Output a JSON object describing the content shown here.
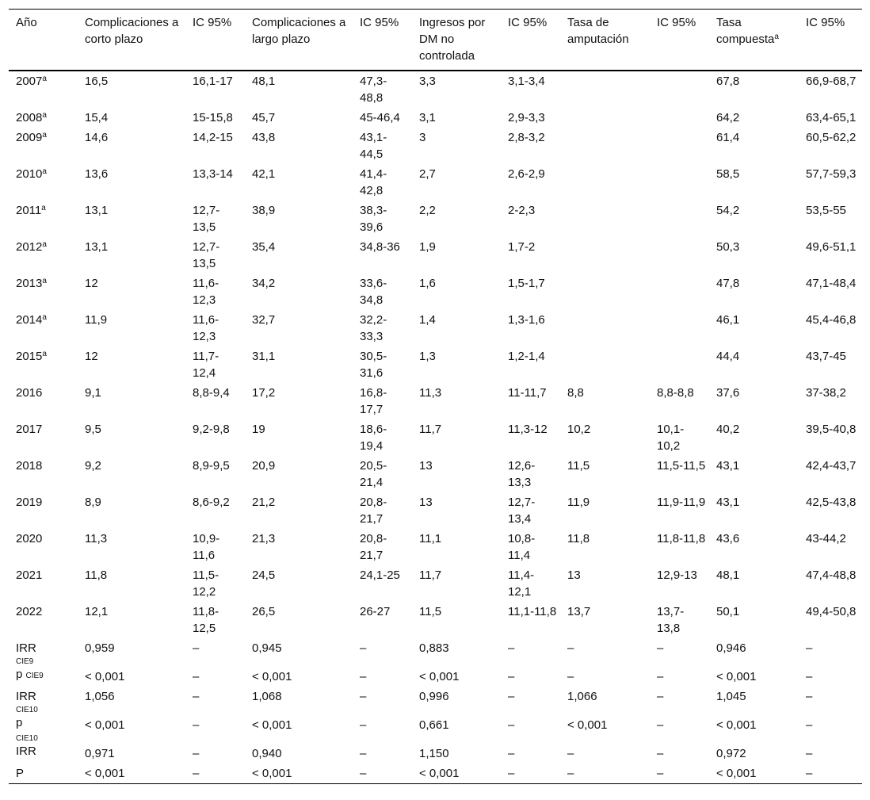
{
  "table": {
    "headers": [
      {
        "text": "Año",
        "sup": ""
      },
      {
        "text": "Complicaciones a corto plazo",
        "sup": ""
      },
      {
        "text": "IC 95%",
        "sup": ""
      },
      {
        "text": "Complicaciones a largo plazo",
        "sup": ""
      },
      {
        "text": "IC 95%",
        "sup": ""
      },
      {
        "text": "Ingresos por DM no controlada",
        "sup": ""
      },
      {
        "text": "IC 95%",
        "sup": ""
      },
      {
        "text": "Tasa de amputación",
        "sup": ""
      },
      {
        "text": "IC 95%",
        "sup": ""
      },
      {
        "text": "Tasa compuesta",
        "sup": "a"
      },
      {
        "text": "IC 95%",
        "sup": ""
      }
    ],
    "rows": [
      {
        "year": "2007",
        "sup": "a",
        "cells": [
          "16,5",
          "16,1-17",
          "48,1",
          "47,3-48,8",
          "3,3",
          "3,1-3,4",
          "",
          "",
          "67,8",
          "66,9-68,7"
        ]
      },
      {
        "year": "2008",
        "sup": "a",
        "cells": [
          "15,4",
          "15-15,8",
          "45,7",
          "45-46,4",
          "3,1",
          "2,9-3,3",
          "",
          "",
          "64,2",
          "63,4-65,1"
        ]
      },
      {
        "year": "2009",
        "sup": "a",
        "cells": [
          "14,6",
          "14,2-15",
          "43,8",
          "43,1-44,5",
          "3",
          "2,8-3,2",
          "",
          "",
          "61,4",
          "60,5-62,2"
        ]
      },
      {
        "year": "2010",
        "sup": "a",
        "cells": [
          "13,6",
          "13,3-14",
          "42,1",
          "41,4-42,8",
          "2,7",
          "2,6-2,9",
          "",
          "",
          "58,5",
          "57,7-59,3"
        ]
      },
      {
        "year": "2011",
        "sup": "a",
        "cells": [
          "13,1",
          "12,7-13,5",
          "38,9",
          "38,3-39,6",
          "2,2",
          "2-2,3",
          "",
          "",
          "54,2",
          "53,5-55"
        ]
      },
      {
        "year": "2012",
        "sup": "a",
        "cells": [
          "13,1",
          "12,7-13,5",
          "35,4",
          "34,8-36",
          "1,9",
          "1,7-2",
          "",
          "",
          "50,3",
          "49,6-51,1"
        ]
      },
      {
        "year": "2013",
        "sup": "a",
        "cells": [
          "12",
          "11,6-12,3",
          "34,2",
          "33,6-34,8",
          "1,6",
          "1,5-1,7",
          "",
          "",
          "47,8",
          "47,1-48,4"
        ]
      },
      {
        "year": "2014",
        "sup": "a",
        "cells": [
          "11,9",
          "11,6-12,3",
          "32,7",
          "32,2-33,3",
          "1,4",
          "1,3-1,6",
          "",
          "",
          "46,1",
          "45,4-46,8"
        ]
      },
      {
        "year": "2015",
        "sup": "a",
        "cells": [
          "12",
          "11,7-12,4",
          "31,1",
          "30,5-31,6",
          "1,3",
          "1,2-1,4",
          "",
          "",
          "44,4",
          "43,7-45"
        ]
      },
      {
        "year": "2016",
        "sup": "",
        "cells": [
          "9,1",
          "8,8-9,4",
          "17,2",
          "16,8-17,7",
          "11,3",
          "11-11,7",
          "8,8",
          "8,8-8,8",
          "37,6",
          "37-38,2"
        ]
      },
      {
        "year": "2017",
        "sup": "",
        "cells": [
          "9,5",
          "9,2-9,8",
          "19",
          "18,6-19,4",
          "11,7",
          "11,3-12",
          "10,2",
          "10,1-10,2",
          "40,2",
          "39,5-40,8"
        ]
      },
      {
        "year": "2018",
        "sup": "",
        "cells": [
          "9,2",
          "8,9-9,5",
          "20,9",
          "20,5-21,4",
          "13",
          "12,6-13,3",
          "11,5",
          "11,5-11,5",
          "43,1",
          "42,4-43,7"
        ]
      },
      {
        "year": "2019",
        "sup": "",
        "cells": [
          "8,9",
          "8,6-9,2",
          "21,2",
          "20,8-21,7",
          "13",
          "12,7-13,4",
          "11,9",
          "11,9-11,9",
          "43,1",
          "42,5-43,8"
        ]
      },
      {
        "year": "2020",
        "sup": "",
        "cells": [
          "11,3",
          "10,9-11,6",
          "21,3",
          "20,8-21,7",
          "11,1",
          "10,8-11,4",
          "11,8",
          "11,8-11,8",
          "43,6",
          "43-44,2"
        ]
      },
      {
        "year": "2021",
        "sup": "",
        "cells": [
          "11,8",
          "11,5-12,2",
          "24,5",
          "24,1-25",
          "11,7",
          "11,4-12,1",
          "13",
          "12,9-13",
          "48,1",
          "47,4-48,8"
        ]
      },
      {
        "year": "2022",
        "sup": "",
        "cells": [
          "12,1",
          "11,8-12,5",
          "26,5",
          "26-27",
          "11,5",
          "11,1-11,8",
          "13,7",
          "13,7-13,8",
          "50,1",
          "49,4-50,8"
        ]
      }
    ],
    "stats": [
      {
        "label": "IRR",
        "top": "",
        "sub": "",
        "cells": [
          "0,959",
          "–",
          "0,945",
          "–",
          "0,883",
          "–",
          "–",
          "–",
          "0,946",
          "–"
        ]
      },
      {
        "label": "p",
        "top": "CIE9",
        "sub": "CIE9",
        "cells": [
          "< 0,001",
          "–",
          "< 0,001",
          "–",
          "< 0,001",
          "–",
          "–",
          "–",
          "< 0,001",
          "–"
        ]
      },
      {
        "label": "IRR",
        "top": "",
        "sub": "",
        "cells": [
          "1,056",
          "–",
          "1,068",
          "–",
          "0,996",
          "–",
          "1,066",
          "–",
          "1,045",
          "–"
        ]
      },
      {
        "label": "p",
        "top": "CIE10",
        "sub": "",
        "cells": [
          "< 0,001",
          "–",
          "< 0,001",
          "–",
          "0,661",
          "–",
          "< 0,001",
          "–",
          "< 0,001",
          "–"
        ]
      },
      {
        "label": "IRR",
        "top": "CIE10",
        "sub": "",
        "cells": [
          "0,971",
          "–",
          "0,940",
          "–",
          "1,150",
          "–",
          "–",
          "–",
          "0,972",
          "–"
        ]
      },
      {
        "label": "P",
        "top": "",
        "sub": "",
        "cells": [
          "< 0,001",
          "–",
          "< 0,001",
          "–",
          "< 0,001",
          "–",
          "–",
          "–",
          "< 0,001",
          "–"
        ]
      }
    ]
  }
}
